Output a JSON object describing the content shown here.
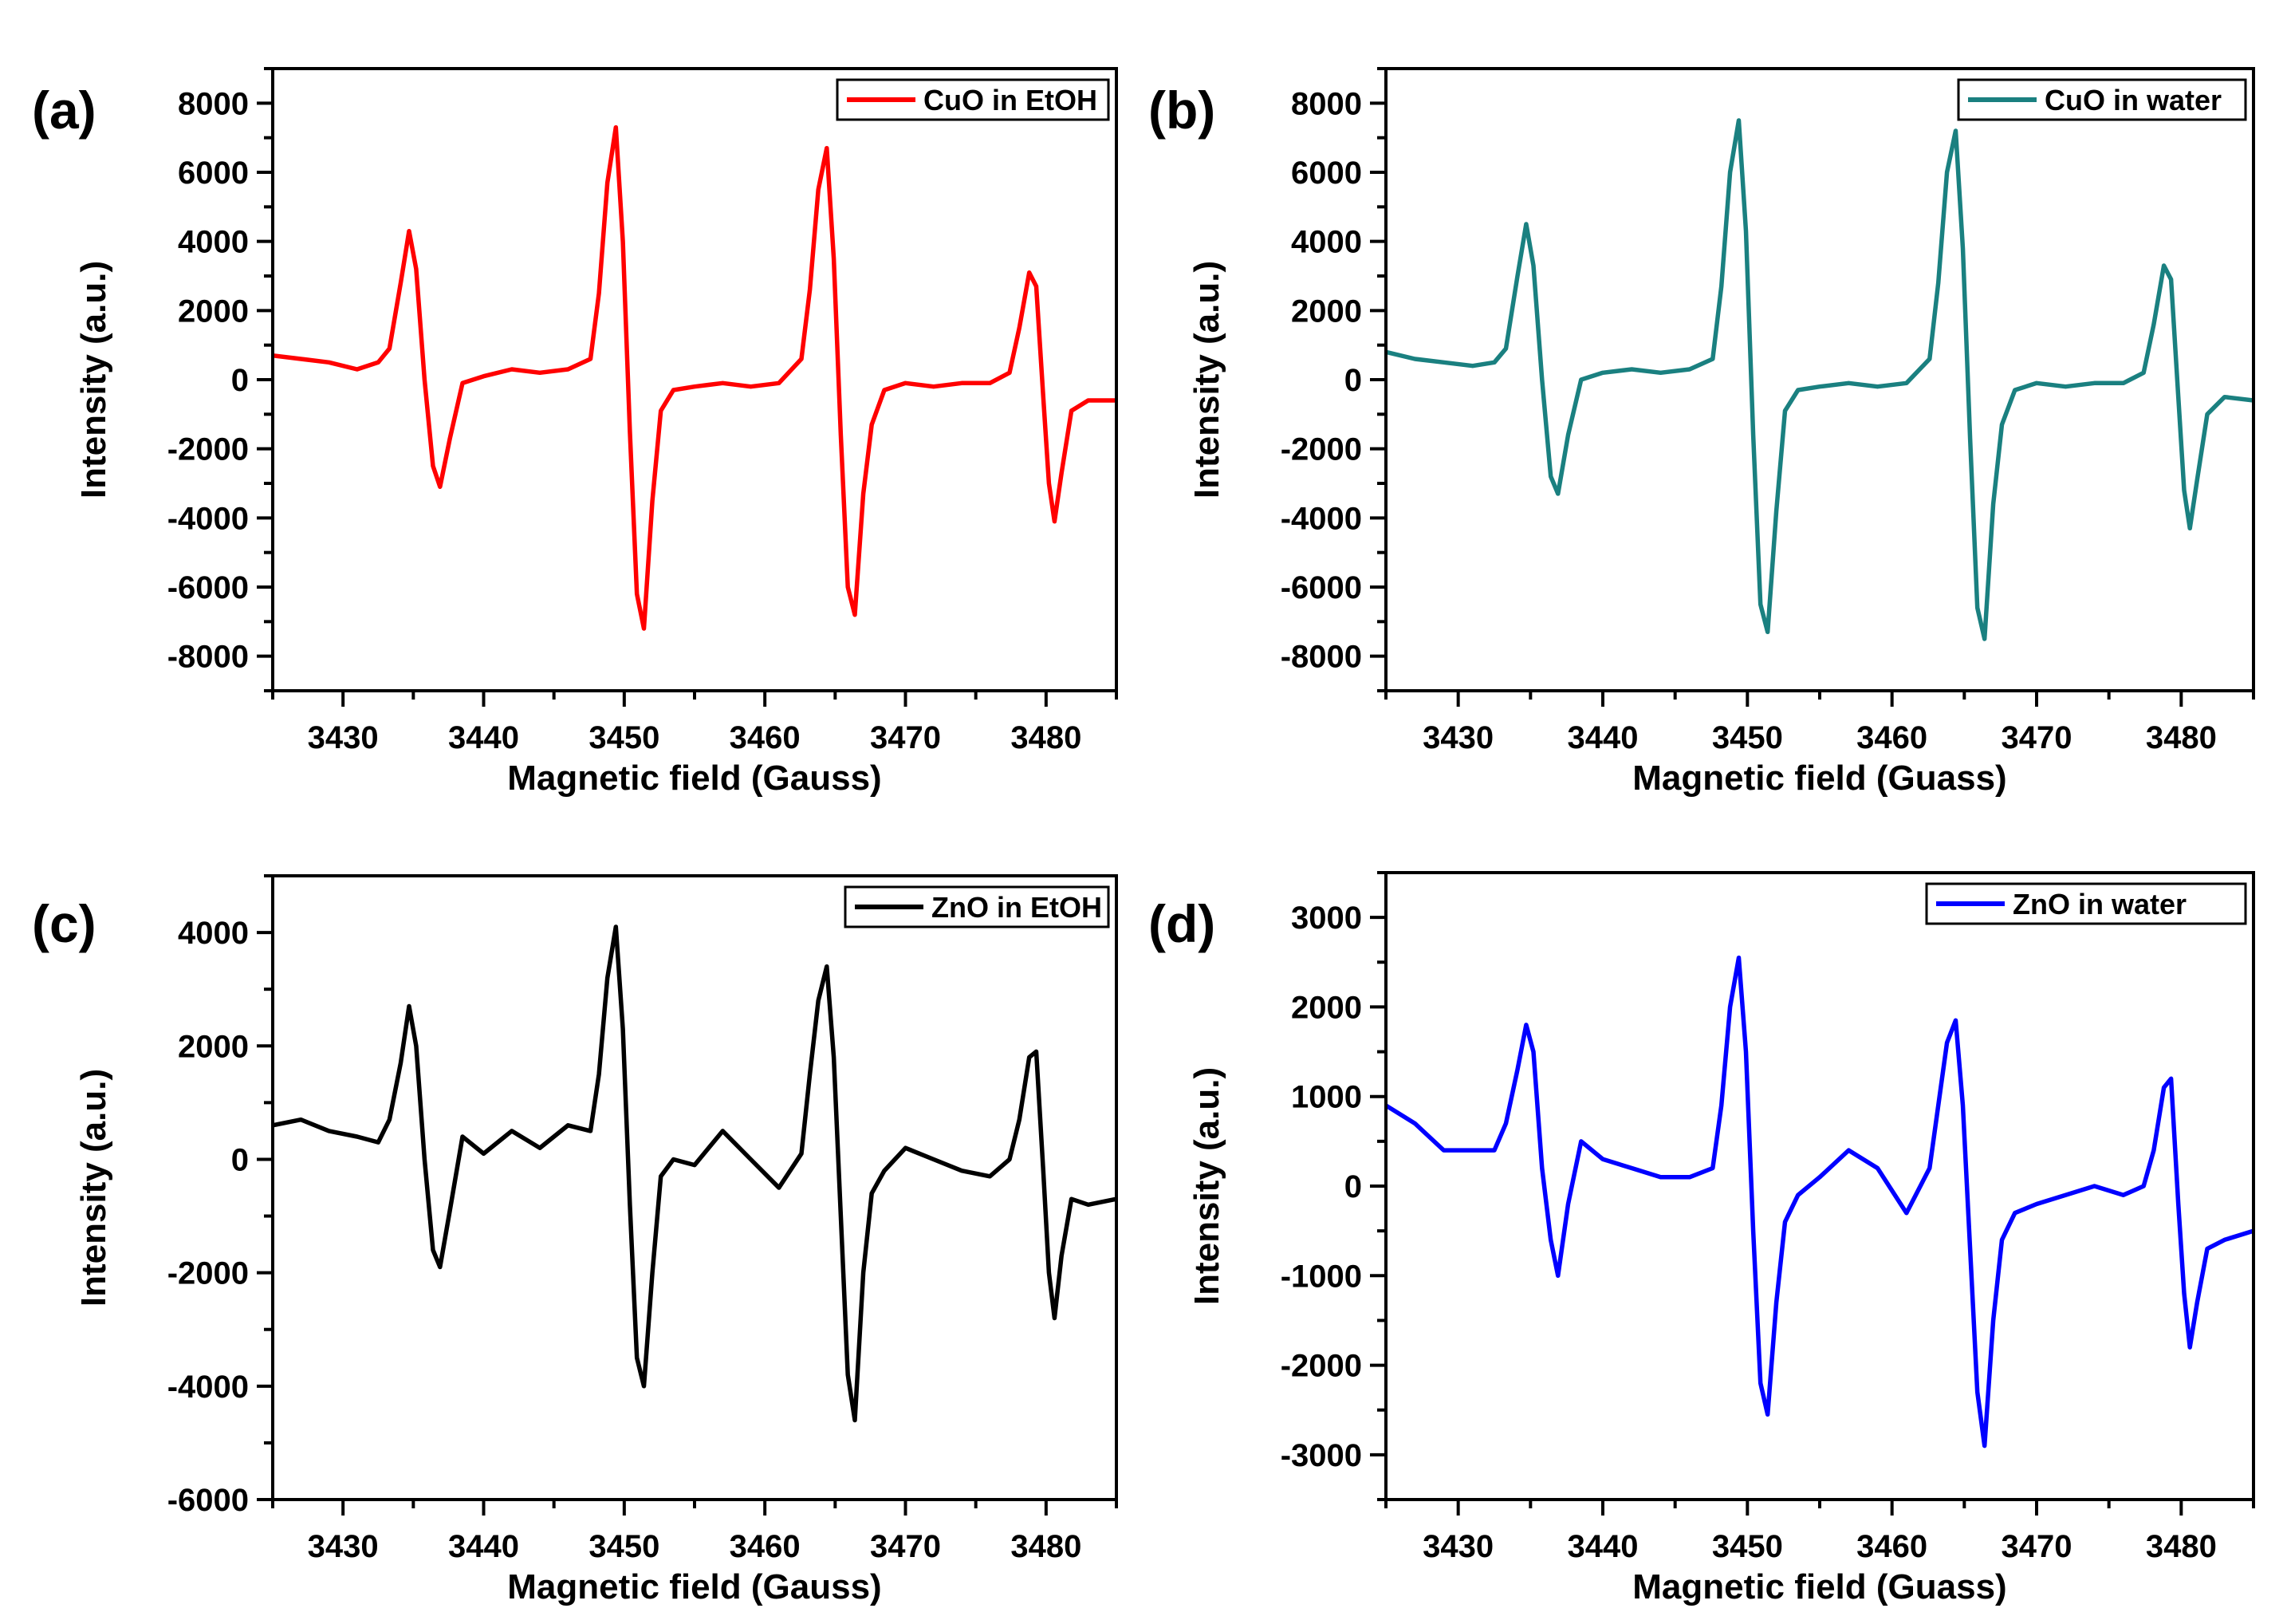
{
  "chart_data": [
    {
      "type": "line",
      "panel_label": "(a)",
      "title": "",
      "xlabel": "Magnetic field (Gauss)",
      "ylabel": "Intensity (a.u.)",
      "xlim": [
        3425,
        3485
      ],
      "ylim": [
        -9000,
        9000
      ],
      "xticks": [
        3430,
        3440,
        3450,
        3460,
        3470,
        3480
      ],
      "yticks": [
        -8000,
        -6000,
        -4000,
        -2000,
        0,
        2000,
        4000,
        6000,
        8000
      ],
      "legend": {
        "label": "CuO in EtOH",
        "position": "top-right"
      },
      "series": [
        {
          "name": "CuO in EtOH",
          "color": "#ff0000",
          "x": [
            3425,
            3427,
            3429,
            3431,
            3432.5,
            3433.3,
            3434.1,
            3434.7,
            3435.2,
            3435.8,
            3436.4,
            3436.9,
            3437.6,
            3438.5,
            3440,
            3442,
            3444,
            3446,
            3447.6,
            3448.2,
            3448.8,
            3449.4,
            3449.9,
            3450.4,
            3450.9,
            3451.4,
            3452,
            3452.6,
            3453.5,
            3455,
            3457,
            3459,
            3461,
            3462.6,
            3463.2,
            3463.8,
            3464.4,
            3464.9,
            3465.4,
            3465.9,
            3466.4,
            3467,
            3467.6,
            3468.5,
            3470,
            3472,
            3474,
            3476,
            3477.4,
            3478.1,
            3478.8,
            3479.3,
            3479.8,
            3480.2,
            3480.6,
            3481.1,
            3481.8,
            3483,
            3485
          ],
          "y": [
            700,
            600,
            500,
            300,
            500,
            900,
            2800,
            4300,
            3200,
            0,
            -2500,
            -3100,
            -1700,
            -100,
            100,
            300,
            200,
            300,
            600,
            2500,
            5700,
            7300,
            4000,
            -1500,
            -6200,
            -7200,
            -3500,
            -900,
            -300,
            -200,
            -100,
            -200,
            -100,
            600,
            2600,
            5500,
            6700,
            3500,
            -1600,
            -6000,
            -6800,
            -3300,
            -1300,
            -300,
            -100,
            -200,
            -100,
            -100,
            200,
            1500,
            3100,
            2700,
            -500,
            -3000,
            -4100,
            -2700,
            -900,
            -600,
            -600
          ]
        }
      ]
    },
    {
      "type": "line",
      "panel_label": "(b)",
      "title": "",
      "xlabel": "Magnetic field (Guass)",
      "ylabel": "Intensity (a.u.)",
      "xlim": [
        3425,
        3485
      ],
      "ylim": [
        -9000,
        9000
      ],
      "xticks": [
        3430,
        3440,
        3450,
        3460,
        3470,
        3480
      ],
      "yticks": [
        -8000,
        -6000,
        -4000,
        -2000,
        0,
        2000,
        4000,
        6000,
        8000
      ],
      "legend": {
        "label": "CuO in water",
        "position": "top-right"
      },
      "series": [
        {
          "name": "CuO in water",
          "color": "#1a8080",
          "x": [
            3425,
            3427,
            3429,
            3431,
            3432.5,
            3433.3,
            3434.1,
            3434.7,
            3435.2,
            3435.8,
            3436.4,
            3436.9,
            3437.6,
            3438.5,
            3440,
            3442,
            3444,
            3446,
            3447.6,
            3448.2,
            3448.8,
            3449.4,
            3449.9,
            3450.4,
            3450.9,
            3451.4,
            3452,
            3452.6,
            3453.5,
            3455,
            3457,
            3459,
            3461,
            3462.6,
            3463.2,
            3463.8,
            3464.4,
            3464.9,
            3465.4,
            3465.9,
            3466.4,
            3467,
            3467.6,
            3468.5,
            3470,
            3472,
            3474,
            3476,
            3477.4,
            3478.1,
            3478.8,
            3479.3,
            3479.8,
            3480.2,
            3480.6,
            3481.1,
            3481.8,
            3483,
            3485
          ],
          "y": [
            800,
            600,
            500,
            400,
            500,
            900,
            3000,
            4500,
            3300,
            0,
            -2800,
            -3300,
            -1600,
            0,
            200,
            300,
            200,
            300,
            600,
            2700,
            6000,
            7500,
            4300,
            -1600,
            -6500,
            -7300,
            -3800,
            -900,
            -300,
            -200,
            -100,
            -200,
            -100,
            600,
            2800,
            6000,
            7200,
            3800,
            -1700,
            -6600,
            -7500,
            -3600,
            -1300,
            -300,
            -100,
            -200,
            -100,
            -100,
            200,
            1600,
            3300,
            2900,
            -500,
            -3200,
            -4300,
            -2900,
            -1000,
            -500,
            -600
          ]
        }
      ]
    },
    {
      "type": "line",
      "panel_label": "(c)",
      "title": "",
      "xlabel": "Magnetic field (Gauss)",
      "ylabel": "Intensity (a.u.)",
      "xlim": [
        3425,
        3485
      ],
      "ylim": [
        -6000,
        5000
      ],
      "xticks": [
        3430,
        3440,
        3450,
        3460,
        3470,
        3480
      ],
      "yticks": [
        -6000,
        -4000,
        -2000,
        0,
        2000,
        4000
      ],
      "legend": {
        "label": "ZnO in EtOH",
        "position": "top-right"
      },
      "series": [
        {
          "name": "ZnO in EtOH",
          "color": "#000000",
          "x": [
            3425,
            3427,
            3429,
            3431,
            3432.5,
            3433.3,
            3434.1,
            3434.7,
            3435.2,
            3435.8,
            3436.4,
            3436.9,
            3437.6,
            3438.5,
            3440,
            3442,
            3444,
            3446,
            3447.6,
            3448.2,
            3448.8,
            3449.4,
            3449.9,
            3450.4,
            3450.9,
            3451.4,
            3452,
            3452.6,
            3453.5,
            3455,
            3457,
            3459,
            3461,
            3462.6,
            3463.2,
            3463.8,
            3464.4,
            3464.9,
            3465.4,
            3465.9,
            3466.4,
            3467,
            3467.6,
            3468.5,
            3470,
            3472,
            3474,
            3476,
            3477.4,
            3478.1,
            3478.8,
            3479.3,
            3479.8,
            3480.2,
            3480.6,
            3481.1,
            3481.8,
            3483,
            3485
          ],
          "y": [
            600,
            700,
            500,
            400,
            300,
            700,
            1700,
            2700,
            2000,
            0,
            -1600,
            -1900,
            -900,
            400,
            100,
            500,
            200,
            600,
            500,
            1500,
            3200,
            4100,
            2300,
            -800,
            -3500,
            -4000,
            -2000,
            -300,
            0,
            -100,
            500,
            0,
            -500,
            100,
            1500,
            2800,
            3400,
            1800,
            -1000,
            -3800,
            -4600,
            -2000,
            -600,
            -200,
            200,
            0,
            -200,
            -300,
            0,
            700,
            1800,
            1900,
            -200,
            -2000,
            -2800,
            -1700,
            -700,
            -800,
            -700
          ]
        }
      ]
    },
    {
      "type": "line",
      "panel_label": "(d)",
      "title": "",
      "xlabel": "Magnetic field (Guass)",
      "ylabel": "Intensity (a.u.)",
      "xlim": [
        3425,
        3485
      ],
      "ylim": [
        -3500,
        3500
      ],
      "xticks": [
        3430,
        3440,
        3450,
        3460,
        3470,
        3480
      ],
      "yticks": [
        -3000,
        -2000,
        -1000,
        0,
        1000,
        2000,
        3000
      ],
      "legend": {
        "label": "ZnO in water",
        "position": "top-right"
      },
      "series": [
        {
          "name": "ZnO in water",
          "color": "#0000ff",
          "x": [
            3425,
            3427,
            3429,
            3431,
            3432.5,
            3433.3,
            3434.1,
            3434.7,
            3435.2,
            3435.8,
            3436.4,
            3436.9,
            3437.6,
            3438.5,
            3440,
            3442,
            3444,
            3446,
            3447.6,
            3448.2,
            3448.8,
            3449.4,
            3449.9,
            3450.4,
            3450.9,
            3451.4,
            3452,
            3452.6,
            3453.5,
            3455,
            3457,
            3459,
            3461,
            3462.6,
            3463.2,
            3463.8,
            3464.4,
            3464.9,
            3465.4,
            3465.9,
            3466.4,
            3467,
            3467.6,
            3468.5,
            3470,
            3472,
            3474,
            3476,
            3477.4,
            3478.1,
            3478.8,
            3479.3,
            3479.8,
            3480.2,
            3480.6,
            3481.1,
            3481.8,
            3483,
            3485
          ],
          "y": [
            900,
            700,
            400,
            400,
            400,
            700,
            1300,
            1800,
            1500,
            200,
            -600,
            -1000,
            -200,
            500,
            300,
            200,
            100,
            100,
            200,
            900,
            2000,
            2550,
            1500,
            -500,
            -2200,
            -2550,
            -1300,
            -400,
            -100,
            100,
            400,
            200,
            -300,
            200,
            900,
            1600,
            1850,
            900,
            -700,
            -2300,
            -2900,
            -1500,
            -600,
            -300,
            -200,
            -100,
            0,
            -100,
            0,
            400,
            1100,
            1200,
            -200,
            -1200,
            -1800,
            -1300,
            -700,
            -600,
            -500
          ]
        }
      ]
    }
  ]
}
